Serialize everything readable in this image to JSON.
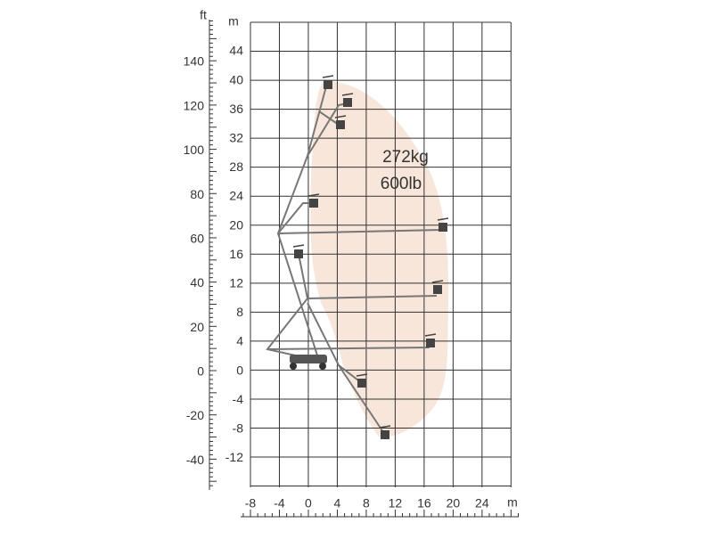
{
  "axes": {
    "ft_unit": "ft",
    "m_unit_left": "m",
    "m_unit_bottom": "m",
    "ft_ticks": [
      "140",
      "120",
      "100",
      "80",
      "60",
      "40",
      "20",
      "0",
      "-20",
      "-40"
    ],
    "m_ticks_y": [
      "44",
      "40",
      "36",
      "32",
      "28",
      "24",
      "20",
      "16",
      "12",
      "8",
      "4",
      "0",
      "-4",
      "-8",
      "-12"
    ],
    "m_ticks_x": [
      "-8",
      "-4",
      "0",
      "4",
      "8",
      "12",
      "16",
      "20",
      "24"
    ]
  },
  "capacity": [
    "272kg",
    "600lb"
  ]
}
